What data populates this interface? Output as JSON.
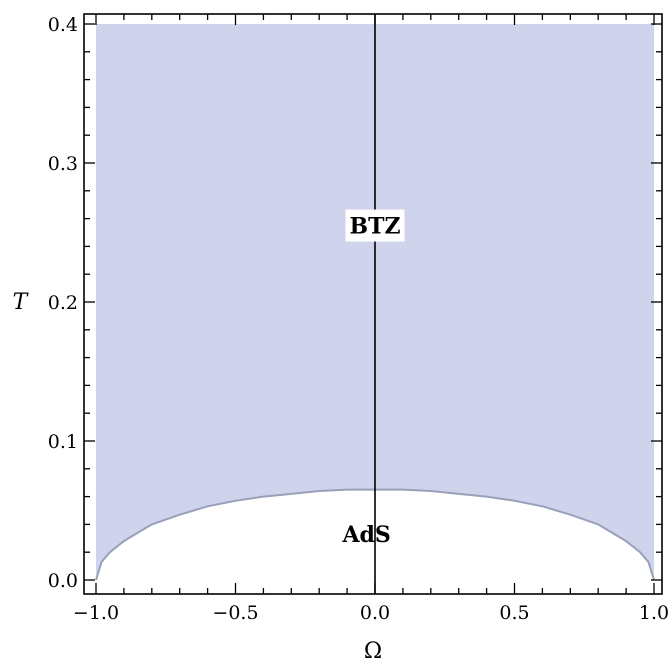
{
  "chart_data": {
    "type": "area",
    "title": "",
    "xlabel": "Ω",
    "ylabel": "T",
    "xlim": [
      -1.0,
      1.0
    ],
    "ylim": [
      0.0,
      0.4
    ],
    "xticks": [
      -1.0,
      -0.5,
      0.0,
      0.5,
      1.0
    ],
    "xtick_labels": [
      "−1.0",
      "−0.5",
      "0.0",
      "0.5",
      "1.0"
    ],
    "yticks": [
      0.0,
      0.1,
      0.2,
      0.3,
      0.4
    ],
    "ytick_labels": [
      "0.0",
      "0.1",
      "0.2",
      "0.3",
      "0.4"
    ],
    "grid": false,
    "boundary": {
      "x": [
        -1.0,
        -0.98,
        -0.95,
        -0.9,
        -0.8,
        -0.7,
        -0.6,
        -0.5,
        -0.4,
        -0.3,
        -0.2,
        -0.1,
        0.0,
        0.1,
        0.2,
        0.3,
        0.4,
        0.5,
        0.6,
        0.7,
        0.8,
        0.9,
        0.95,
        0.98,
        1.0
      ],
      "y": [
        0.0,
        0.013,
        0.02,
        0.028,
        0.04,
        0.047,
        0.053,
        0.057,
        0.06,
        0.062,
        0.064,
        0.065,
        0.065,
        0.065,
        0.064,
        0.062,
        0.06,
        0.057,
        0.053,
        0.047,
        0.04,
        0.028,
        0.02,
        0.013,
        0.0
      ]
    },
    "shaded_color": "#cfd3eb",
    "boundary_color": "#9aa0b8",
    "regions": [
      {
        "label": "BTZ",
        "x": 0.0,
        "y": 0.255
      },
      {
        "label": "AdS",
        "x": -0.03,
        "y": 0.033
      }
    ]
  }
}
